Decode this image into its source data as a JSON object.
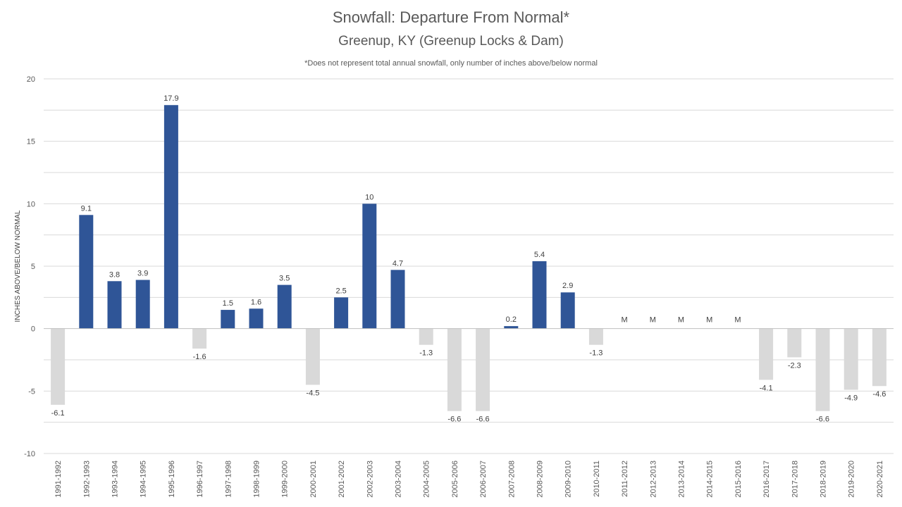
{
  "chart_data": {
    "type": "bar",
    "title": "Snowfall: Departure From Normal*",
    "subtitle": "Greenup, KY (Greenup Locks & Dam)",
    "note": "*Does not represent  total annual snowfall, only number of inches above/below normal",
    "xlabel": "",
    "ylabel": "INCHES ABOVE/BELOW NORMAL",
    "ylim": [
      -10,
      20
    ],
    "yticks": [
      -10,
      -5,
      0,
      5,
      10,
      15,
      20
    ],
    "grid": true,
    "legend": "none",
    "categories": [
      "1991-1992",
      "1992-1993",
      "1993-1994",
      "1994-1995",
      "1995-1996",
      "1996-1997",
      "1997-1998",
      "1998-1999",
      "1999-2000",
      "2000-2001",
      "2001-2002",
      "2002-2003",
      "2003-2004",
      "2004-2005",
      "2005-2006",
      "2006-2007",
      "2007-2008",
      "2008-2009",
      "2009-2010",
      "2010-2011",
      "2011-2012",
      "2012-2013",
      "2013-2014",
      "2014-2015",
      "2015-2016",
      "2016-2017",
      "2017-2018",
      "2018-2019",
      "2019-2020",
      "2020-2021"
    ],
    "values": [
      -6.1,
      9.1,
      3.8,
      3.9,
      17.9,
      -1.6,
      1.5,
      1.6,
      3.5,
      -4.5,
      2.5,
      10,
      4.7,
      -1.3,
      -6.6,
      -6.6,
      0.2,
      5.4,
      2.9,
      -1.3,
      null,
      null,
      null,
      null,
      null,
      -4.1,
      -2.3,
      -6.6,
      -4.9,
      -4.6
    ],
    "data_labels": [
      "-6.1",
      "9.1",
      "3.8",
      "3.9",
      "17.9",
      "-1.6",
      "1.5",
      "1.6",
      "3.5",
      "-4.5",
      "2.5",
      "10",
      "4.7",
      "-1.3",
      "-6.6",
      "-6.6",
      "0.2",
      "5.4",
      "2.9",
      "-1.3",
      "M",
      "M",
      "M",
      "M",
      "M",
      "-4.1",
      "-2.3",
      "-6.6",
      "-4.9",
      "-4.6"
    ],
    "colors": {
      "positive": "#2f5597",
      "negative": "#d9d9d9",
      "grid": "#d9d9d9",
      "axis": "#bfbfbf"
    }
  }
}
